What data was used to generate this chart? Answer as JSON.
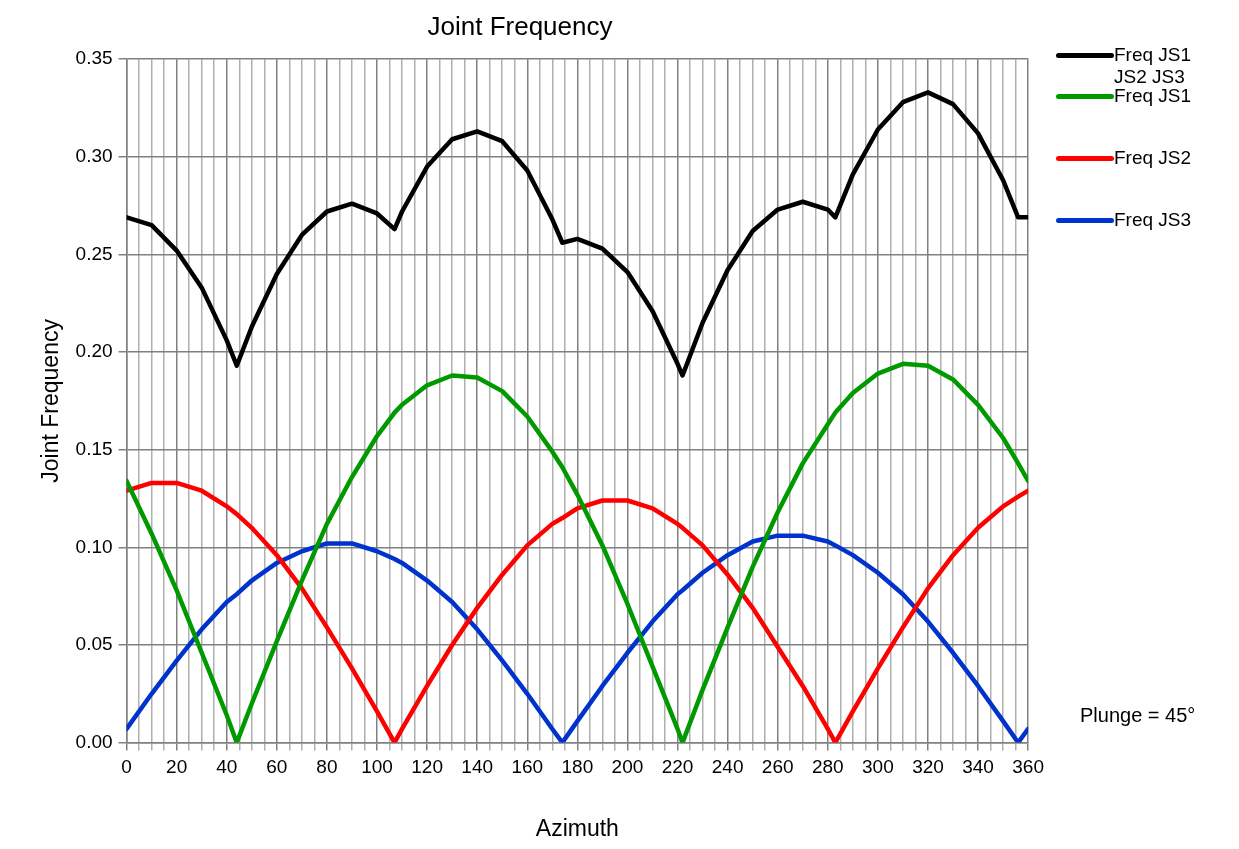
{
  "chart_data": {
    "type": "line",
    "title": "Joint Frequency",
    "xlabel": "Azimuth",
    "ylabel": "Joint Frequency",
    "x": [
      0,
      10,
      20,
      30,
      40,
      44,
      50,
      60,
      70,
      80,
      90,
      100,
      107,
      110,
      120,
      130,
      140,
      150,
      160,
      170,
      174,
      180,
      190,
      200,
      210,
      220,
      222,
      230,
      240,
      250,
      260,
      270,
      280,
      283,
      290,
      300,
      310,
      320,
      330,
      340,
      350,
      356,
      360
    ],
    "series": [
      {
        "name": "Freq JS1 JS2 JS3",
        "color": "#000000",
        "values": [
          0.269,
          0.265,
          0.252,
          0.233,
          0.206,
          0.193,
          0.213,
          0.24,
          0.26,
          0.272,
          0.276,
          0.271,
          0.263,
          0.272,
          0.295,
          0.309,
          0.313,
          0.308,
          0.293,
          0.268,
          0.256,
          0.258,
          0.253,
          0.241,
          0.221,
          0.194,
          0.188,
          0.215,
          0.242,
          0.262,
          0.273,
          0.277,
          0.273,
          0.269,
          0.291,
          0.314,
          0.328,
          0.333,
          0.327,
          0.312,
          0.288,
          0.269,
          0.269
        ]
      },
      {
        "name": "Freq JS1",
        "color": "#009900",
        "values": [
          0.134,
          0.107,
          0.078,
          0.046,
          0.014,
          0,
          0.02,
          0.052,
          0.083,
          0.112,
          0.136,
          0.157,
          0.169,
          0.173,
          0.183,
          0.188,
          0.187,
          0.18,
          0.167,
          0.149,
          0.141,
          0.127,
          0.101,
          0.071,
          0.039,
          0.007,
          0,
          0.027,
          0.059,
          0.09,
          0.118,
          0.143,
          0.163,
          0.169,
          0.179,
          0.189,
          0.194,
          0.193,
          0.186,
          0.173,
          0.156,
          0.143,
          0.134
        ]
      },
      {
        "name": "Freq JS2",
        "color": "#ff0000",
        "values": [
          0.129,
          0.133,
          0.133,
          0.129,
          0.121,
          0.117,
          0.11,
          0.096,
          0.079,
          0.059,
          0.038,
          0.016,
          0,
          0.007,
          0.029,
          0.05,
          0.069,
          0.086,
          0.101,
          0.112,
          0.115,
          0.12,
          0.124,
          0.124,
          0.12,
          0.112,
          0.11,
          0.101,
          0.086,
          0.069,
          0.049,
          0.029,
          0.007,
          0,
          0.016,
          0.038,
          0.059,
          0.079,
          0.096,
          0.11,
          0.121,
          0.126,
          0.129
        ]
      },
      {
        "name": "Freq JS3",
        "color": "#0033cc",
        "values": [
          0.007,
          0.025,
          0.042,
          0.058,
          0.072,
          0.076,
          0.083,
          0.092,
          0.098,
          0.102,
          0.102,
          0.098,
          0.094,
          0.092,
          0.083,
          0.072,
          0.058,
          0.042,
          0.025,
          0.007,
          0,
          0.011,
          0.029,
          0.046,
          0.062,
          0.076,
          0.078,
          0.087,
          0.096,
          0.103,
          0.106,
          0.106,
          0.103,
          0.101,
          0.096,
          0.087,
          0.076,
          0.062,
          0.046,
          0.029,
          0.011,
          0,
          0.007
        ]
      }
    ],
    "xlim": [
      0,
      360
    ],
    "xticks": [
      0,
      {
        "value": 5,
        "label": null
      },
      {
        "value": 10,
        "label": null
      },
      {
        "value": 15,
        "label": null
      },
      20,
      {
        "value": 25,
        "label": null
      },
      {
        "value": 30,
        "label": null
      },
      {
        "value": 35,
        "label": null
      },
      40,
      {
        "value": 45,
        "label": null
      },
      {
        "value": 50,
        "label": null
      },
      {
        "value": 55,
        "label": null
      },
      60,
      {
        "value": 65,
        "label": null
      },
      {
        "value": 70,
        "label": null
      },
      {
        "value": 75,
        "label": null
      },
      80,
      {
        "value": 85,
        "label": null
      },
      {
        "value": 90,
        "label": null
      },
      {
        "value": 95,
        "label": null
      },
      100,
      {
        "value": 105,
        "label": null
      },
      {
        "value": 110,
        "label": null
      },
      {
        "value": 115,
        "label": null
      },
      120,
      {
        "value": 125,
        "label": null
      },
      {
        "value": 130,
        "label": null
      },
      {
        "value": 135,
        "label": null
      },
      140,
      {
        "value": 145,
        "label": null
      },
      {
        "value": 150,
        "label": null
      },
      {
        "value": 155,
        "label": null
      },
      160,
      {
        "value": 165,
        "label": null
      },
      {
        "value": 170,
        "label": null
      },
      {
        "value": 175,
        "label": null
      },
      180,
      {
        "value": 185,
        "label": null
      },
      {
        "value": 190,
        "label": null
      },
      {
        "value": 195,
        "label": null
      },
      200,
      {
        "value": 205,
        "label": null
      },
      {
        "value": 210,
        "label": null
      },
      {
        "value": 215,
        "label": null
      },
      220,
      {
        "value": 225,
        "label": null
      },
      {
        "value": 230,
        "label": null
      },
      {
        "value": 235,
        "label": null
      },
      240,
      {
        "value": 245,
        "label": null
      },
      {
        "value": 250,
        "label": null
      },
      {
        "value": 255,
        "label": null
      },
      260,
      {
        "value": 265,
        "label": null
      },
      {
        "value": 270,
        "label": null
      },
      {
        "value": 275,
        "label": null
      },
      280,
      {
        "value": 285,
        "label": null
      },
      {
        "value": 290,
        "label": null
      },
      {
        "value": 295,
        "label": null
      },
      300,
      {
        "value": 305,
        "label": null
      },
      {
        "value": 310,
        "label": null
      },
      {
        "value": 315,
        "label": null
      },
      320,
      {
        "value": 325,
        "label": null
      },
      {
        "value": 330,
        "label": null
      },
      {
        "value": 335,
        "label": null
      },
      340,
      {
        "value": 345,
        "label": null
      },
      {
        "value": 350,
        "label": null
      },
      {
        "value": 355,
        "label": null
      },
      360
    ],
    "ylim": [
      0,
      0.35
    ],
    "yticks": [
      {
        "value": 0,
        "label": "0.00"
      },
      {
        "value": 0.05,
        "label": "0.05"
      },
      {
        "value": 0.1,
        "label": "0.10"
      },
      {
        "value": 0.15,
        "label": "0.15"
      },
      {
        "value": 0.2,
        "label": "0.20"
      },
      {
        "value": 0.25,
        "label": "0.25"
      },
      {
        "value": 0.3,
        "label": "0.30"
      },
      {
        "value": 0.35,
        "label": "0.35"
      }
    ],
    "grid": true,
    "legend": "right",
    "marker": "none",
    "line_style": "solid",
    "annotations": [
      "Plunge = 45°"
    ]
  }
}
